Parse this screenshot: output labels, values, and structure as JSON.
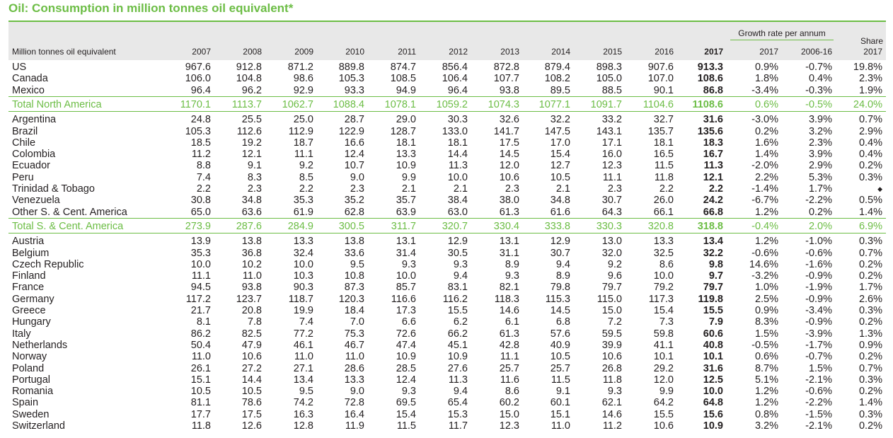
{
  "title": "Oil: Consumption in million tonnes oil equivalent*",
  "header": {
    "unit_label": "Million tonnes oil equivalent",
    "years": [
      "2007",
      "2008",
      "2009",
      "2010",
      "2011",
      "2012",
      "2013",
      "2014",
      "2015",
      "2016",
      "2017"
    ],
    "growth_group": "Growth rate per annum",
    "growth_cols": [
      "2017",
      "2006-16"
    ],
    "share_top": "Share",
    "share_year": "2017"
  },
  "rows": [
    {
      "label": "US",
      "values": [
        "967.6",
        "912.8",
        "871.2",
        "889.8",
        "874.7",
        "856.4",
        "872.8",
        "879.4",
        "898.3",
        "907.6",
        "913.3"
      ],
      "g2017": "0.9%",
      "g0616": "-0.7%",
      "share": "19.8%"
    },
    {
      "label": "Canada",
      "values": [
        "106.0",
        "104.8",
        "98.6",
        "105.3",
        "108.5",
        "106.4",
        "107.7",
        "108.2",
        "105.0",
        "107.0",
        "108.6"
      ],
      "g2017": "1.8%",
      "g0616": "0.4%",
      "share": "2.3%"
    },
    {
      "label": "Mexico",
      "values": [
        "96.4",
        "96.2",
        "92.9",
        "93.3",
        "94.9",
        "96.4",
        "93.8",
        "89.5",
        "88.5",
        "90.1",
        "86.8"
      ],
      "g2017": "-3.4%",
      "g0616": "-0.3%",
      "share": "1.9%"
    },
    {
      "label": "Total North America",
      "total": true,
      "values": [
        "1170.1",
        "1113.7",
        "1062.7",
        "1088.4",
        "1078.1",
        "1059.2",
        "1074.3",
        "1077.1",
        "1091.7",
        "1104.6",
        "1108.6"
      ],
      "g2017": "0.6%",
      "g0616": "-0.5%",
      "share": "24.0%"
    },
    {
      "label": "Argentina",
      "values": [
        "24.8",
        "25.5",
        "25.0",
        "28.7",
        "29.0",
        "30.3",
        "32.6",
        "32.2",
        "33.2",
        "32.7",
        "31.6"
      ],
      "g2017": "-3.0%",
      "g0616": "3.9%",
      "share": "0.7%"
    },
    {
      "label": "Brazil",
      "values": [
        "105.3",
        "112.6",
        "112.9",
        "122.9",
        "128.7",
        "133.0",
        "141.7",
        "147.5",
        "143.1",
        "135.7",
        "135.6"
      ],
      "g2017": "0.2%",
      "g0616": "3.2%",
      "share": "2.9%"
    },
    {
      "label": "Chile",
      "values": [
        "18.5",
        "19.2",
        "18.7",
        "16.6",
        "18.1",
        "18.1",
        "17.5",
        "17.0",
        "17.1",
        "18.1",
        "18.3"
      ],
      "g2017": "1.6%",
      "g0616": "2.3%",
      "share": "0.4%"
    },
    {
      "label": "Colombia",
      "values": [
        "11.2",
        "12.1",
        "11.1",
        "12.4",
        "13.3",
        "14.4",
        "14.5",
        "15.4",
        "16.0",
        "16.5",
        "16.7"
      ],
      "g2017": "1.4%",
      "g0616": "3.9%",
      "share": "0.4%"
    },
    {
      "label": "Ecuador",
      "values": [
        "8.8",
        "9.1",
        "9.2",
        "10.7",
        "10.9",
        "11.3",
        "12.0",
        "12.7",
        "12.3",
        "11.5",
        "11.3"
      ],
      "g2017": "-2.0%",
      "g0616": "2.9%",
      "share": "0.2%"
    },
    {
      "label": "Peru",
      "values": [
        "7.4",
        "8.3",
        "8.5",
        "9.0",
        "9.9",
        "10.0",
        "10.6",
        "10.5",
        "11.1",
        "11.8",
        "12.1"
      ],
      "g2017": "2.2%",
      "g0616": "5.3%",
      "share": "0.3%"
    },
    {
      "label": "Trinidad & Tobago",
      "values": [
        "2.2",
        "2.3",
        "2.2",
        "2.3",
        "2.1",
        "2.1",
        "2.3",
        "2.1",
        "2.3",
        "2.2",
        "2.2"
      ],
      "g2017": "-1.4%",
      "g0616": "1.7%",
      "share": "◆"
    },
    {
      "label": "Venezuela",
      "values": [
        "30.8",
        "34.8",
        "35.3",
        "35.2",
        "35.7",
        "38.4",
        "38.0",
        "34.8",
        "30.7",
        "26.0",
        "24.2"
      ],
      "g2017": "-6.7%",
      "g0616": "-2.2%",
      "share": "0.5%"
    },
    {
      "label": "Other S. & Cent. America",
      "values": [
        "65.0",
        "63.6",
        "61.9",
        "62.8",
        "63.9",
        "63.0",
        "61.3",
        "61.6",
        "64.3",
        "66.1",
        "66.8"
      ],
      "g2017": "1.2%",
      "g0616": "0.2%",
      "share": "1.4%"
    },
    {
      "label": "Total S. & Cent. America",
      "total": true,
      "values": [
        "273.9",
        "287.6",
        "284.9",
        "300.5",
        "311.7",
        "320.7",
        "330.4",
        "333.8",
        "330.3",
        "320.8",
        "318.8"
      ],
      "g2017": "-0.4%",
      "g0616": "2.0%",
      "share": "6.9%"
    },
    {
      "label": "Austria",
      "values": [
        "13.9",
        "13.8",
        "13.3",
        "13.8",
        "13.1",
        "12.9",
        "13.1",
        "12.9",
        "13.0",
        "13.3",
        "13.4"
      ],
      "g2017": "1.2%",
      "g0616": "-1.0%",
      "share": "0.3%"
    },
    {
      "label": "Belgium",
      "values": [
        "35.3",
        "36.8",
        "32.4",
        "33.6",
        "31.4",
        "30.5",
        "31.1",
        "30.7",
        "32.0",
        "32.5",
        "32.2"
      ],
      "g2017": "-0.6%",
      "g0616": "-0.6%",
      "share": "0.7%"
    },
    {
      "label": "Czech Republic",
      "values": [
        "10.0",
        "10.2",
        "10.0",
        "9.5",
        "9.3",
        "9.3",
        "8.9",
        "9.4",
        "9.2",
        "8.6",
        "9.8"
      ],
      "g2017": "14.6%",
      "g0616": "-1.6%",
      "share": "0.2%"
    },
    {
      "label": "Finland",
      "values": [
        "11.1",
        "11.0",
        "10.3",
        "10.8",
        "10.0",
        "9.4",
        "9.3",
        "8.9",
        "9.6",
        "10.0",
        "9.7"
      ],
      "g2017": "-3.2%",
      "g0616": "-0.9%",
      "share": "0.2%"
    },
    {
      "label": "France",
      "values": [
        "94.5",
        "93.8",
        "90.3",
        "87.3",
        "85.7",
        "83.1",
        "82.1",
        "79.8",
        "79.7",
        "79.2",
        "79.7"
      ],
      "g2017": "1.0%",
      "g0616": "-1.9%",
      "share": "1.7%"
    },
    {
      "label": "Germany",
      "values": [
        "117.2",
        "123.7",
        "118.7",
        "120.3",
        "116.6",
        "116.2",
        "118.3",
        "115.3",
        "115.0",
        "117.3",
        "119.8"
      ],
      "g2017": "2.5%",
      "g0616": "-0.9%",
      "share": "2.6%"
    },
    {
      "label": "Greece",
      "values": [
        "21.7",
        "20.8",
        "19.9",
        "18.4",
        "17.3",
        "15.5",
        "14.6",
        "14.5",
        "15.0",
        "15.4",
        "15.5"
      ],
      "g2017": "0.9%",
      "g0616": "-3.4%",
      "share": "0.3%"
    },
    {
      "label": "Hungary",
      "values": [
        "8.1",
        "7.8",
        "7.4",
        "7.0",
        "6.6",
        "6.2",
        "6.1",
        "6.8",
        "7.2",
        "7.3",
        "7.9"
      ],
      "g2017": "8.3%",
      "g0616": "-0.9%",
      "share": "0.2%"
    },
    {
      "label": "Italy",
      "values": [
        "86.2",
        "82.5",
        "77.2",
        "75.3",
        "72.6",
        "66.2",
        "61.3",
        "57.6",
        "59.5",
        "59.8",
        "60.6"
      ],
      "g2017": "1.5%",
      "g0616": "-3.9%",
      "share": "1.3%"
    },
    {
      "label": "Netherlands",
      "values": [
        "50.4",
        "47.9",
        "46.1",
        "46.7",
        "47.4",
        "45.1",
        "42.8",
        "40.9",
        "39.9",
        "41.1",
        "40.8"
      ],
      "g2017": "-0.5%",
      "g0616": "-1.7%",
      "share": "0.9%"
    },
    {
      "label": "Norway",
      "values": [
        "11.0",
        "10.6",
        "11.0",
        "11.0",
        "10.9",
        "10.9",
        "11.1",
        "10.5",
        "10.6",
        "10.1",
        "10.1"
      ],
      "g2017": "0.6%",
      "g0616": "-0.7%",
      "share": "0.2%"
    },
    {
      "label": "Poland",
      "values": [
        "26.1",
        "27.2",
        "27.1",
        "28.6",
        "28.5",
        "27.6",
        "25.7",
        "25.7",
        "26.8",
        "29.2",
        "31.6"
      ],
      "g2017": "8.7%",
      "g0616": "1.5%",
      "share": "0.7%"
    },
    {
      "label": "Portugal",
      "values": [
        "15.1",
        "14.4",
        "13.4",
        "13.3",
        "12.4",
        "11.3",
        "11.6",
        "11.5",
        "11.8",
        "12.0",
        "12.5"
      ],
      "g2017": "5.1%",
      "g0616": "-2.1%",
      "share": "0.3%"
    },
    {
      "label": "Romania",
      "values": [
        "10.5",
        "10.5",
        "9.5",
        "9.0",
        "9.3",
        "9.4",
        "8.6",
        "9.1",
        "9.3",
        "9.9",
        "10.0"
      ],
      "g2017": "1.2%",
      "g0616": "-0.6%",
      "share": "0.2%"
    },
    {
      "label": "Spain",
      "values": [
        "81.1",
        "78.6",
        "74.2",
        "72.8",
        "69.5",
        "65.4",
        "60.2",
        "60.1",
        "62.1",
        "64.2",
        "64.8"
      ],
      "g2017": "1.2%",
      "g0616": "-2.2%",
      "share": "1.4%"
    },
    {
      "label": "Sweden",
      "values": [
        "17.7",
        "17.5",
        "16.3",
        "16.4",
        "15.4",
        "15.3",
        "15.0",
        "15.1",
        "14.6",
        "15.5",
        "15.6"
      ],
      "g2017": "0.8%",
      "g0616": "-1.5%",
      "share": "0.3%"
    },
    {
      "label": "Switzerland",
      "values": [
        "11.8",
        "12.6",
        "12.8",
        "11.9",
        "11.5",
        "11.7",
        "12.3",
        "11.0",
        "11.2",
        "10.6",
        "10.9"
      ],
      "g2017": "3.2%",
      "g0616": "-2.1%",
      "share": "0.2%"
    }
  ]
}
